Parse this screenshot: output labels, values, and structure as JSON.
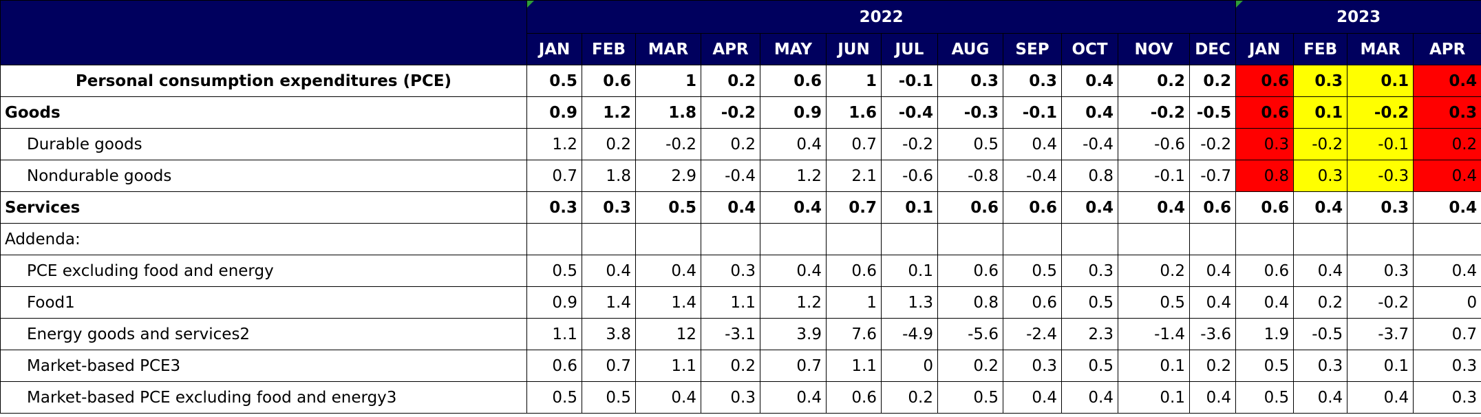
{
  "header": {
    "years": [
      {
        "label": "2022",
        "months": [
          "JAN",
          "FEB",
          "MAR",
          "APR",
          "MAY",
          "JUN",
          "JUL",
          "AUG",
          "SEP",
          "OCT",
          "NOV",
          "DEC"
        ]
      },
      {
        "label": "2023",
        "months": [
          "JAN",
          "FEB",
          "MAR",
          "APR"
        ]
      }
    ]
  },
  "table": {
    "rows": [
      {
        "label": "Personal consumption expenditures (PCE)",
        "style": "bold-centered",
        "values": [
          0.5,
          0.6,
          1,
          0.2,
          0.6,
          1,
          -0.1,
          0.3,
          0.3,
          0.4,
          0.2,
          0.2,
          0.6,
          0.3,
          0.1,
          0.4
        ],
        "highlight_colors": [
          "#ff0000",
          "#ffff00",
          "#ffff00",
          "#ff0000"
        ]
      },
      {
        "label": "Goods",
        "style": "bold",
        "values": [
          0.9,
          1.2,
          1.8,
          -0.2,
          0.9,
          1.6,
          -0.4,
          -0.3,
          -0.1,
          0.4,
          -0.2,
          -0.5,
          0.6,
          0.1,
          -0.2,
          0.3
        ],
        "highlight_colors": [
          "#ff0000",
          "#ffff00",
          "#ffff00",
          "#ff0000"
        ]
      },
      {
        "label": "Durable goods",
        "style": "indent",
        "values": [
          1.2,
          0.2,
          -0.2,
          0.2,
          0.4,
          0.7,
          -0.2,
          0.5,
          0.4,
          -0.4,
          -0.6,
          -0.2,
          0.3,
          -0.2,
          -0.1,
          0.2
        ],
        "highlight_colors": [
          "#ff0000",
          "#ffff00",
          "#ffff00",
          "#ff0000"
        ]
      },
      {
        "label": "Nondurable goods",
        "style": "indent",
        "values": [
          0.7,
          1.8,
          2.9,
          -0.4,
          1.2,
          2.1,
          -0.6,
          -0.8,
          -0.4,
          0.8,
          -0.1,
          -0.7,
          0.8,
          0.3,
          -0.3,
          0.4
        ],
        "highlight_colors": [
          "#ff0000",
          "#ffff00",
          "#ffff00",
          "#ff0000"
        ]
      },
      {
        "label": "Services",
        "style": "bold",
        "values": [
          0.3,
          0.3,
          0.5,
          0.4,
          0.4,
          0.7,
          0.1,
          0.6,
          0.6,
          0.4,
          0.4,
          0.6,
          0.6,
          0.4,
          0.3,
          0.4
        ]
      },
      {
        "label": "Addenda:",
        "style": "plain"
      },
      {
        "label": "PCE excluding food and energy",
        "style": "indent",
        "values": [
          0.5,
          0.4,
          0.4,
          0.3,
          0.4,
          0.6,
          0.1,
          0.6,
          0.5,
          0.3,
          0.2,
          0.4,
          0.6,
          0.4,
          0.3,
          0.4
        ]
      },
      {
        "label": "Food1",
        "style": "indent",
        "values": [
          0.9,
          1.4,
          1.4,
          1.1,
          1.2,
          1,
          1.3,
          0.8,
          0.6,
          0.5,
          0.5,
          0.4,
          0.4,
          0.2,
          -0.2,
          0
        ]
      },
      {
        "label": "Energy goods and services2",
        "style": "indent",
        "values": [
          1.1,
          3.8,
          12,
          -3.1,
          3.9,
          7.6,
          -4.9,
          -5.6,
          -2.4,
          2.3,
          -1.4,
          -3.6,
          1.9,
          -0.5,
          -3.7,
          0.7
        ]
      },
      {
        "label": "Market-based PCE3",
        "style": "indent",
        "values": [
          0.6,
          0.7,
          1.1,
          0.2,
          0.7,
          1.1,
          0,
          0.2,
          0.3,
          0.5,
          0.1,
          0.2,
          0.5,
          0.3,
          0.1,
          0.3
        ]
      },
      {
        "label": "Market-based PCE excluding food and energy3",
        "style": "indent",
        "values": [
          0.5,
          0.5,
          0.4,
          0.3,
          0.4,
          0.6,
          0.2,
          0.5,
          0.4,
          0.4,
          0.1,
          0.4,
          0.5,
          0.4,
          0.4,
          0.3
        ]
      }
    ]
  }
}
